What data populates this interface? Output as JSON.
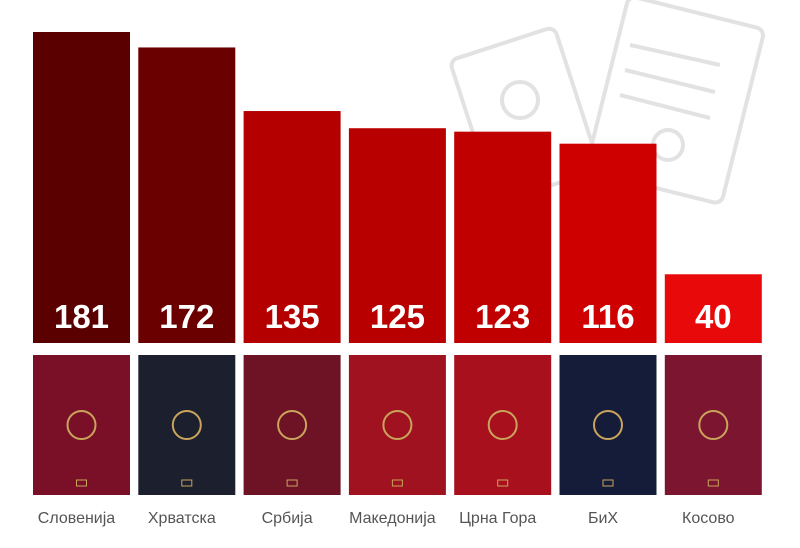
{
  "chart_data": {
    "type": "bar",
    "categories": [
      "Словенија",
      "Хрватска",
      "Србија",
      "Македонија",
      "Црна Гора",
      "БиХ",
      "Косово"
    ],
    "values": [
      181,
      172,
      135,
      125,
      123,
      116,
      40
    ],
    "colors": [
      "#5a0000",
      "#6a0000",
      "#b50000",
      "#b80000",
      "#c00000",
      "#cf0000",
      "#e80a0a"
    ]
  }
}
